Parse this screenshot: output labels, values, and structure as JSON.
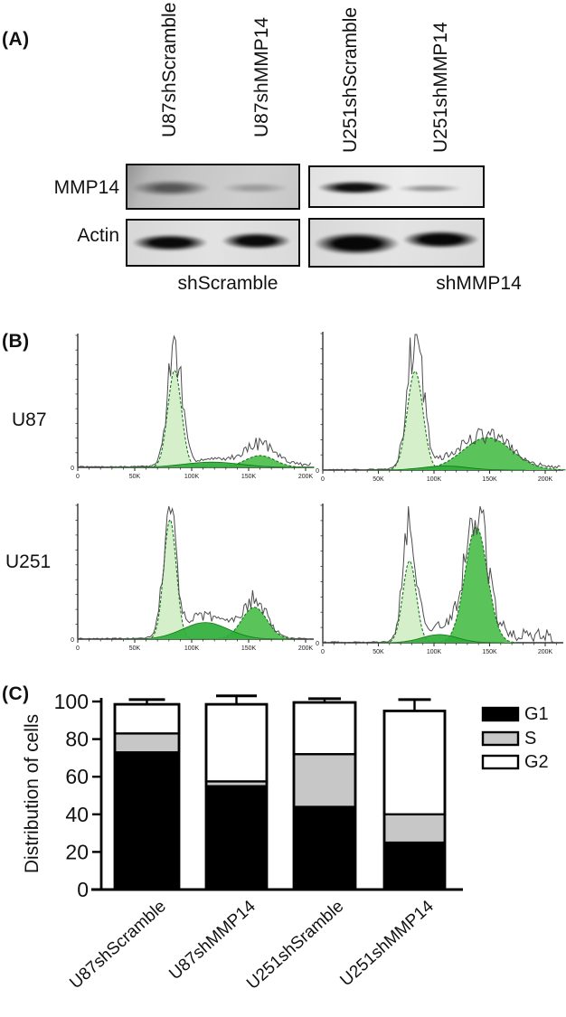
{
  "figure": {
    "panelA": {
      "label": "(A)",
      "lanes": [
        "U87shScramble",
        "U87shMMP14",
        "U251shScramble",
        "U251shMMP14"
      ],
      "rows": [
        "MMP14",
        "Actin"
      ],
      "groups": [
        "shScramble",
        "shMMP14"
      ]
    },
    "panelB": {
      "label": "(B)",
      "cell_lines": [
        "U87",
        "U251"
      ],
      "x_ticks": [
        "0",
        "50K",
        "100K",
        "150K",
        "200K"
      ],
      "x_tick_values_k": [
        0,
        50,
        100,
        150,
        200
      ],
      "y_origin_label": "0"
    },
    "panelC": {
      "label": "(C)"
    }
  },
  "chart_data": [
    {
      "type": "bar",
      "stacked": true,
      "ylabel": "Distribution of cells",
      "categories": [
        "U87shScramble",
        "U87shMMP14",
        "U251shSramble",
        "U251shMMP14"
      ],
      "series": [
        {
          "name": "G1",
          "color": "#000000",
          "values": [
            73,
            55,
            44,
            25
          ]
        },
        {
          "name": "S",
          "color": "#c7c7c7",
          "values": [
            10,
            2.5,
            28,
            15
          ]
        },
        {
          "name": "G2",
          "color": "#ffffff",
          "values": [
            15.5,
            41,
            27.5,
            55
          ]
        }
      ],
      "totals": [
        98.5,
        98.5,
        99.5,
        95
      ],
      "error_cap_tops": [
        101,
        103,
        101.5,
        101
      ],
      "yticks": [
        0,
        20,
        40,
        60,
        80,
        100
      ],
      "ylim": [
        0,
        100
      ],
      "legend_position": "right"
    },
    {
      "type": "histogram-set",
      "description": "Flow cytometry cell-cycle DNA histograms; x axis DNA content, y axis cell count",
      "x_ticks": [
        "0",
        "50K",
        "100K",
        "150K",
        "200K"
      ],
      "plots": [
        {
          "row": "U87",
          "condition": "shScramble",
          "g1": {
            "center_k": 85,
            "sigma_k": 6,
            "height": 0.74
          },
          "s": {
            "center_k": 118,
            "sigma_k": 25,
            "height": 0.04
          },
          "g2": {
            "center_k": 160,
            "sigma_k": 13,
            "height": 0.09
          },
          "trace_boost": {
            "g1": 1.24,
            "s": 1.5,
            "g2": 1.6
          },
          "noise_regions": [
            {
              "from_k": 145,
              "to_k": 212,
              "amp": 0.035
            }
          ],
          "x_end_k": 215,
          "seed": 7
        },
        {
          "row": "U87",
          "condition": "shMMP14",
          "g1": {
            "center_k": 83,
            "sigma_k": 7,
            "height": 0.73
          },
          "s": {
            "center_k": 110,
            "sigma_k": 20,
            "height": 0.03
          },
          "g2": {
            "center_k": 148,
            "sigma_k": 22,
            "height": 0.24
          },
          "trace_boost": {
            "g1": 1.33,
            "s": 1.3,
            "g2": 1.05
          },
          "noise_regions": [
            {
              "from_k": 195,
              "to_k": 220,
              "amp": 0.025
            }
          ],
          "x_end_k": 220,
          "seed": 13
        },
        {
          "row": "U251",
          "condition": "shScramble",
          "g1": {
            "center_k": 81,
            "sigma_k": 5.5,
            "height": 0.9
          },
          "s": {
            "center_k": 112,
            "sigma_k": 20,
            "height": 0.125
          },
          "g2": {
            "center_k": 155,
            "sigma_k": 11,
            "height": 0.24
          },
          "trace_boost": {
            "g1": 1.09,
            "s": 1.35,
            "g2": 1.15
          },
          "noise_regions": [],
          "x_end_k": 210,
          "seed": 29
        },
        {
          "row": "U251",
          "condition": "shMMP14",
          "g1": {
            "center_k": 78,
            "sigma_k": 6,
            "height": 0.6
          },
          "s": {
            "center_k": 105,
            "sigma_k": 16,
            "height": 0.06
          },
          "g2": {
            "center_k": 138,
            "sigma_k": 10,
            "height": 0.85
          },
          "trace_boost": {
            "g1": 1.38,
            "s": 2.0,
            "g2": 1.17
          },
          "noise_regions": [
            {
              "from_k": 150,
              "to_k": 205,
              "amp": 0.1
            }
          ],
          "x_end_k": 208,
          "seed": 41
        }
      ]
    }
  ],
  "colors": {
    "g1_fill": "#d6efcb",
    "g2_fill": "#5ac35a",
    "s_fill": "#2fae39",
    "model_outline": "#117716",
    "raw_trace": "#4d4d4d",
    "bar_g1": "#000000",
    "bar_s": "#c7c7c7",
    "bar_g2": "#ffffff"
  }
}
